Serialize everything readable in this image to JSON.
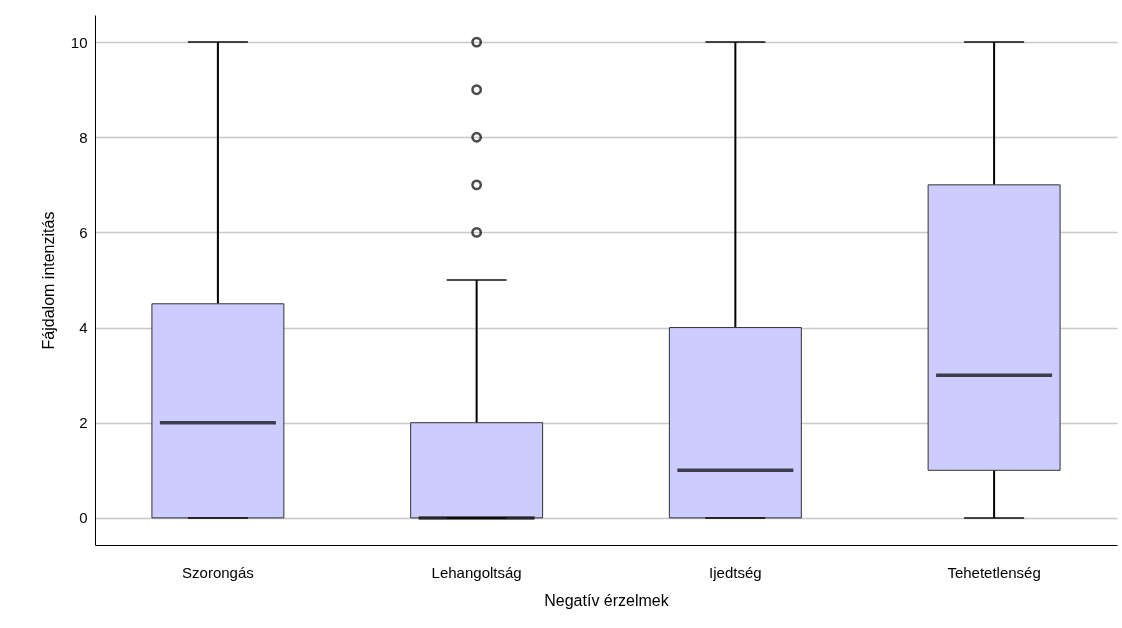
{
  "chart_data": {
    "type": "box",
    "xlabel": "Negatív érzelmek",
    "ylabel": "Fájdalom intenzitás",
    "categories": [
      "Szorongás",
      "Lehangoltság",
      "Ijedtség",
      "Tehetetlenség"
    ],
    "series": [
      {
        "color": "#ccccff",
        "boxes": [
          {
            "low": 0,
            "q1": 0,
            "median": 2,
            "q3": 4.5,
            "high": 10
          },
          {
            "low": 0,
            "q1": 0,
            "median": 0,
            "q3": 2,
            "high": 5,
            "outliers": [
              6,
              7,
              8,
              9,
              10
            ]
          },
          {
            "low": 0,
            "q1": 0,
            "median": 1,
            "q3": 4,
            "high": 10
          },
          {
            "low": 0,
            "q1": 1,
            "median": 3,
            "q3": 7,
            "high": 10
          }
        ]
      }
    ],
    "ylim": [
      -0.57,
      10.57
    ],
    "yticks": [
      0,
      2,
      4,
      6,
      8,
      10
    ],
    "grid": "y"
  }
}
